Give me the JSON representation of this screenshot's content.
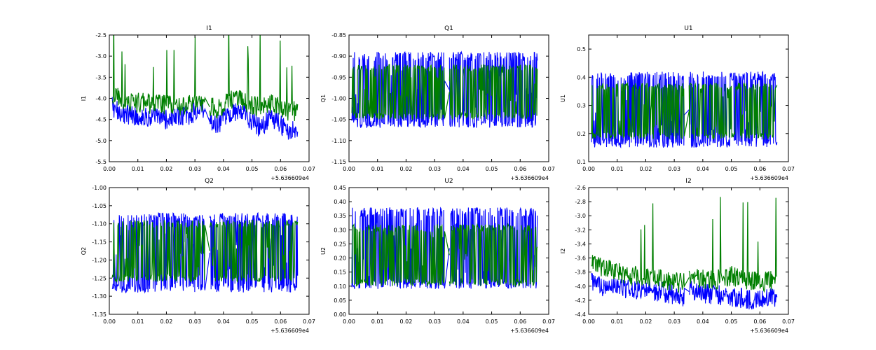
{
  "figure": {
    "colors": {
      "series_a": "#0000ff",
      "series_b": "#007f00",
      "axes": "#000000",
      "background": "#ffffff"
    },
    "xticks": [
      "0.00",
      "0.01",
      "0.02",
      "0.03",
      "0.04",
      "0.05",
      "0.06",
      "0.07"
    ],
    "xoffset": "+5.636609e4",
    "gap": [
      0.0335,
      0.0352
    ]
  },
  "chart_data": [
    {
      "type": "line",
      "title": "I1",
      "ylabel": "I1",
      "xlim": [
        0.0,
        0.07
      ],
      "ylim": [
        -5.5,
        -2.5
      ],
      "yticks": [
        "-2.5",
        "-3.0",
        "-3.5",
        "-4.0",
        "-4.5",
        "-5.0",
        "-5.5"
      ],
      "grid": false,
      "series": [
        {
          "color": "blue",
          "x": [
            0.001,
            0.004,
            0.008,
            0.012,
            0.016,
            0.02,
            0.024,
            0.028,
            0.032,
            0.035,
            0.038,
            0.041,
            0.044,
            0.047,
            0.05,
            0.053,
            0.056,
            0.059,
            0.062,
            0.066
          ],
          "y": [
            -4.2,
            -4.35,
            -4.4,
            -4.45,
            -4.45,
            -4.5,
            -4.45,
            -4.4,
            -4.25,
            -4.55,
            -4.65,
            -4.45,
            -4.3,
            -4.35,
            -4.55,
            -4.7,
            -4.5,
            -4.55,
            -4.75,
            -4.7
          ]
        },
        {
          "color": "green",
          "x": [
            0.001,
            0.004,
            0.008,
            0.012,
            0.016,
            0.02,
            0.024,
            0.028,
            0.032,
            0.035,
            0.038,
            0.041,
            0.044,
            0.047,
            0.05,
            0.053,
            0.056,
            0.059,
            0.062,
            0.066
          ],
          "y": [
            -3.9,
            -4.0,
            -4.1,
            -4.1,
            -4.15,
            -4.15,
            -4.2,
            -4.15,
            -4.05,
            -4.2,
            -4.25,
            -4.1,
            -4.0,
            -4.05,
            -4.15,
            -4.2,
            -4.1,
            -4.15,
            -4.3,
            -4.3
          ]
        }
      ]
    },
    {
      "type": "line",
      "title": "Q1",
      "ylabel": "Q1",
      "xlim": [
        0.0,
        0.07
      ],
      "ylim": [
        -1.15,
        -0.85
      ],
      "yticks": [
        "-0.85",
        "-0.90",
        "-0.95",
        "-1.00",
        "-1.05",
        "-1.10",
        "-1.15"
      ],
      "grid": false,
      "series": [
        {
          "color": "blue",
          "x": [
            0.001,
            0.066
          ],
          "y": [
            -0.98,
            -0.98
          ],
          "range": [
            -1.07,
            -0.89
          ]
        },
        {
          "color": "green",
          "x": [
            0.001,
            0.066
          ],
          "y": [
            -0.98,
            -0.98
          ],
          "range": [
            -1.05,
            -0.92
          ]
        }
      ]
    },
    {
      "type": "line",
      "title": "U1",
      "ylabel": "U1",
      "xlim": [
        0.0,
        0.07
      ],
      "ylim": [
        0.1,
        0.55
      ],
      "yticks": [
        "0.5",
        "0.4",
        "0.3",
        "0.2",
        "0.1"
      ],
      "grid": false,
      "series": [
        {
          "color": "blue",
          "x": [
            0.001,
            0.066
          ],
          "y": [
            0.27,
            0.26
          ],
          "range": [
            0.15,
            0.42
          ]
        },
        {
          "color": "green",
          "x": [
            0.001,
            0.066
          ],
          "y": [
            0.27,
            0.26
          ],
          "range": [
            0.18,
            0.38
          ]
        }
      ]
    },
    {
      "type": "line",
      "title": "Q2",
      "ylabel": "Q2",
      "xlim": [
        0.0,
        0.07
      ],
      "ylim": [
        -1.35,
        -1.0
      ],
      "yticks": [
        "-1.00",
        "-1.05",
        "-1.10",
        "-1.15",
        "-1.20",
        "-1.25",
        "-1.30",
        "-1.35"
      ],
      "grid": false,
      "series": [
        {
          "color": "blue",
          "x": [
            0.001,
            0.066
          ],
          "y": [
            -1.18,
            -1.19
          ],
          "range": [
            -1.29,
            -1.07
          ]
        },
        {
          "color": "green",
          "x": [
            0.001,
            0.066
          ],
          "y": [
            -1.18,
            -1.19
          ],
          "range": [
            -1.26,
            -1.09
          ]
        }
      ]
    },
    {
      "type": "line",
      "title": "U2",
      "ylabel": "U2",
      "xlim": [
        0.0,
        0.07
      ],
      "ylim": [
        0.0,
        0.45
      ],
      "yticks": [
        "0.45",
        "0.40",
        "0.35",
        "0.30",
        "0.25",
        "0.20",
        "0.15",
        "0.10",
        "0.05",
        "0.00"
      ],
      "grid": false,
      "series": [
        {
          "color": "blue",
          "x": [
            0.001,
            0.066
          ],
          "y": [
            0.2,
            0.19
          ],
          "range": [
            0.09,
            0.38
          ]
        },
        {
          "color": "green",
          "x": [
            0.001,
            0.066
          ],
          "y": [
            0.2,
            0.19
          ],
          "range": [
            0.1,
            0.32
          ]
        }
      ]
    },
    {
      "type": "line",
      "title": "I2",
      "ylabel": "I2",
      "xlim": [
        0.0,
        0.07
      ],
      "ylim": [
        -4.4,
        -2.6
      ],
      "yticks": [
        "-2.6",
        "-2.8",
        "-3.0",
        "-3.2",
        "-3.4",
        "-3.6",
        "-3.8",
        "-4.0",
        "-4.2",
        "-4.4"
      ],
      "grid": false,
      "series": [
        {
          "color": "blue",
          "x": [
            0.001,
            0.005,
            0.01,
            0.015,
            0.02,
            0.025,
            0.03,
            0.033,
            0.036,
            0.04,
            0.045,
            0.05,
            0.055,
            0.06,
            0.066
          ],
          "y": [
            -3.95,
            -4.0,
            -4.02,
            -4.05,
            -4.05,
            -4.08,
            -4.12,
            -4.15,
            -4.05,
            -4.1,
            -4.12,
            -4.15,
            -4.18,
            -4.2,
            -4.15
          ]
        },
        {
          "color": "green",
          "x": [
            0.001,
            0.005,
            0.01,
            0.015,
            0.02,
            0.025,
            0.03,
            0.033,
            0.036,
            0.04,
            0.045,
            0.05,
            0.055,
            0.06,
            0.066
          ],
          "y": [
            -3.6,
            -3.75,
            -3.8,
            -3.85,
            -3.85,
            -3.9,
            -3.95,
            -3.95,
            -3.85,
            -3.9,
            -3.9,
            -3.85,
            -3.9,
            -3.95,
            -3.9
          ]
        }
      ]
    }
  ]
}
